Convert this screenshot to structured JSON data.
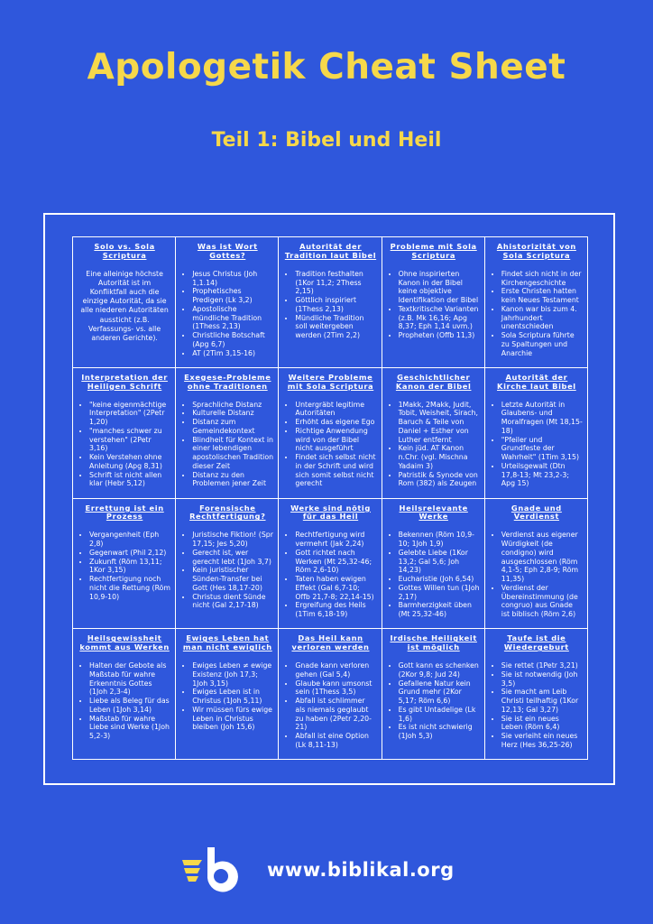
{
  "header": {
    "title": "Apologetik Cheat Sheet",
    "subtitle": "Teil 1: Bibel und Heil"
  },
  "grid": {
    "rows": [
      [
        {
          "title": "Solo vs. Sola Scriptura",
          "text": "Eine alleinige höchste Autorität ist im Konfliktfall auch die einzige Autorität, da sie alle niederen Autoritäten aussticht (z.B. Verfassungs- vs. alle anderen Gerichte)."
        },
        {
          "title": "Was ist Wort Gottes?",
          "items": [
            "Jesus Christus (Joh 1,1.14)",
            "Prophetisches Predigen (Lk 3,2)",
            "Apostolische mündliche Tradition (1Thess 2,13)",
            "Christliche Botschaft (Apg 6,7)",
            "AT (2Tim 3,15-16)"
          ]
        },
        {
          "title": "Autorität der Tradition laut Bibel",
          "items": [
            "Tradition festhalten (1Kor 11,2; 2Thess 2,15)",
            "Göttlich inspiriert (1Thess 2,13)",
            "Mündliche Tradition soll weitergeben werden (2Tim 2,2)"
          ]
        },
        {
          "title": "Probleme mit Sola Scriptura",
          "items": [
            "Ohne inspirierten Kanon in der Bibel keine objektive Identifikation der Bibel",
            "Textkritische Varianten (z.B. Mk 16,16; Apg 8,37; Eph 1,14 uvm.)",
            "Propheten (Offb 11,3)"
          ]
        },
        {
          "title": "Ahistorizität von Sola Scriptura",
          "items": [
            "Findet sich nicht in der Kirchengeschichte",
            "Erste Christen hatten kein Neues Testament",
            "Kanon war bis zum 4. Jahrhundert unentschieden",
            "Sola Scriptura führte zu Spaltungen und Anarchie"
          ]
        }
      ],
      [
        {
          "title": "Interpretation der Heiligen Schrift",
          "items": [
            "\"keine eigenmächtige Interpretation\" (2Petr 1,20)",
            "\"manches schwer zu verstehen\" (2Petr 3,16)",
            "Kein Verstehen ohne Anleitung (Apg 8,31)",
            "Schrift ist nicht allen klar (Hebr 5,12)"
          ]
        },
        {
          "title": "Exegese-Probleme ohne Traditionen",
          "items": [
            "Sprachliche Distanz",
            "Kulturelle Distanz",
            "Distanz zum Gemeindekontext",
            "Blindheit für Kontext in einer lebendigen apostolischen Tradition dieser Zeit",
            "Distanz zu den Problemen jener Zeit"
          ]
        },
        {
          "title": "Weitere Probleme mit Sola Scriptura",
          "items": [
            "Untergräbt legitime Autoritäten",
            "Erhöht das eigene Ego",
            "Richtige Anwendung wird von der Bibel nicht ausgeführt",
            "Findet sich selbst nicht in der Schrift und wird sich somit selbst nicht gerecht"
          ]
        },
        {
          "title": "Geschichtlicher Kanon der Bibel",
          "items": [
            "1Makk, 2Makk, Judit, Tobit, Weisheit, Sirach, Baruch & Teile von Daniel + Esther von Luther entfernt",
            "Kein jüd. AT Kanon n.Chr. (vgl. Mischna Yadaim 3)",
            "Patristik & Synode von Rom (382) als Zeugen"
          ]
        },
        {
          "title": "Autorität der Kirche laut Bibel",
          "items": [
            "Letzte Autorität in Glaubens- und Moralfragen (Mt 18,15-18)",
            "\"Pfeiler und Grundfeste der Wahrheit\" (1Tim 3,15)",
            "Urteilsgewalt (Dtn 17,8-13; Mt 23,2-3; Apg 15)"
          ]
        }
      ],
      [
        {
          "title": "Errettung ist ein Prozess",
          "items": [
            "Vergangenheit (Eph 2,8)",
            "Gegenwart (Phil 2,12)",
            "Zukunft (Röm 13,11; 1Kor 3,15)",
            "Rechtfertigung noch nicht die Rettung (Röm 10,9-10)"
          ]
        },
        {
          "title": "Forensische Rechtfertigung?",
          "items": [
            "Juristische Fiktion! (Spr 17,15; Jes 5,20)",
            "Gerecht ist, wer gerecht lebt (1Joh 3,7)",
            "Kein juristischer Sünden-Transfer bei Gott (Hes 18,17-20)",
            "Christus dient Sünde nicht (Gal 2,17-18)"
          ]
        },
        {
          "title": "Werke sind nötig für das Heil",
          "items": [
            "Rechtfertigung wird vermehrt (Jak 2,24)",
            "Gott richtet nach Werken (Mt 25,32-46; Röm 2,6-10)",
            "Taten haben ewigen Effekt (Gal 6,7-10; Offb 21,7-8; 22,14-15)",
            "Ergreifung des Heils (1Tim 6,18-19)"
          ]
        },
        {
          "title": "Heilsrelevante Werke",
          "items": [
            "Bekennen (Röm 10,9-10; 1Joh 1,9)",
            "Gelebte Liebe (1Kor 13,2; Gal 5,6; Joh 14,23)",
            "Eucharistie (Joh 6,54)",
            "Gottes Willen tun (1Joh 2,17)",
            "Barmherzigkeit üben (Mt 25,32-46)"
          ]
        },
        {
          "title": "Gnade und Verdienst",
          "items": [
            "Verdienst aus eigener Würdigkeit (de condigno) wird ausgeschlossen (Röm 4,1-5; Eph 2,8-9; Röm 11,35)",
            "Verdienst der Übereinstimmung (de congruo) aus Gnade ist biblisch (Röm 2,6)"
          ]
        }
      ],
      [
        {
          "title": "Heilsgewissheit kommt aus Werken",
          "items": [
            "Halten der Gebote als Maßstab für wahre Erkenntnis Gottes (1Joh 2,3-4)",
            "Liebe als Beleg für das Leben (1Joh 3,14)",
            "Maßstab für wahre Liebe sind Werke (1Joh 5,2-3)"
          ]
        },
        {
          "title": "Ewiges Leben hat man nicht ewiglich",
          "items": [
            "Ewiges Leben ≠ ewige Existenz (Joh 17,3; 1Joh 3,15)",
            "Ewiges Leben ist in Christus (1Joh 5,11)",
            "Wir müssen fürs ewige Leben in Christus bleiben (Joh 15,6)"
          ]
        },
        {
          "title": "Das Heil kann verloren werden",
          "items": [
            "Gnade kann verloren gehen (Gal 5,4)",
            "Glaube kann umsonst sein (1Thess 3,5)",
            "Abfall ist schlimmer als niemals geglaubt zu haben (2Petr 2,20-21)",
            "Abfall ist eine Option (Lk 8,11-13)"
          ]
        },
        {
          "title": "Irdische Heiligkeit ist möglich",
          "items": [
            "Gott kann es schenken (2Kor 9,8; Jud 24)",
            "Gefallene Natur kein Grund mehr (2Kor 5,17; Röm 6,6)",
            "Es gibt Untadelige (Lk 1,6)",
            "Es ist nicht schwierig (1Joh 5,3)"
          ]
        },
        {
          "title": "Taufe ist die Wiedergeburt",
          "items": [
            "Sie rettet (1Petr 3,21)",
            "Sie ist notwendig (Joh 3,5)",
            "Sie macht am Leib Christi teilhaftig (1Kor 12,13; Gal 3,27)",
            "Sie ist ein neues Leben (Röm 6,4)",
            "Sie verleiht ein neues Herz (Hes 36,25-26)"
          ]
        }
      ]
    ]
  },
  "footer": {
    "url": "www.biblikal.org"
  }
}
